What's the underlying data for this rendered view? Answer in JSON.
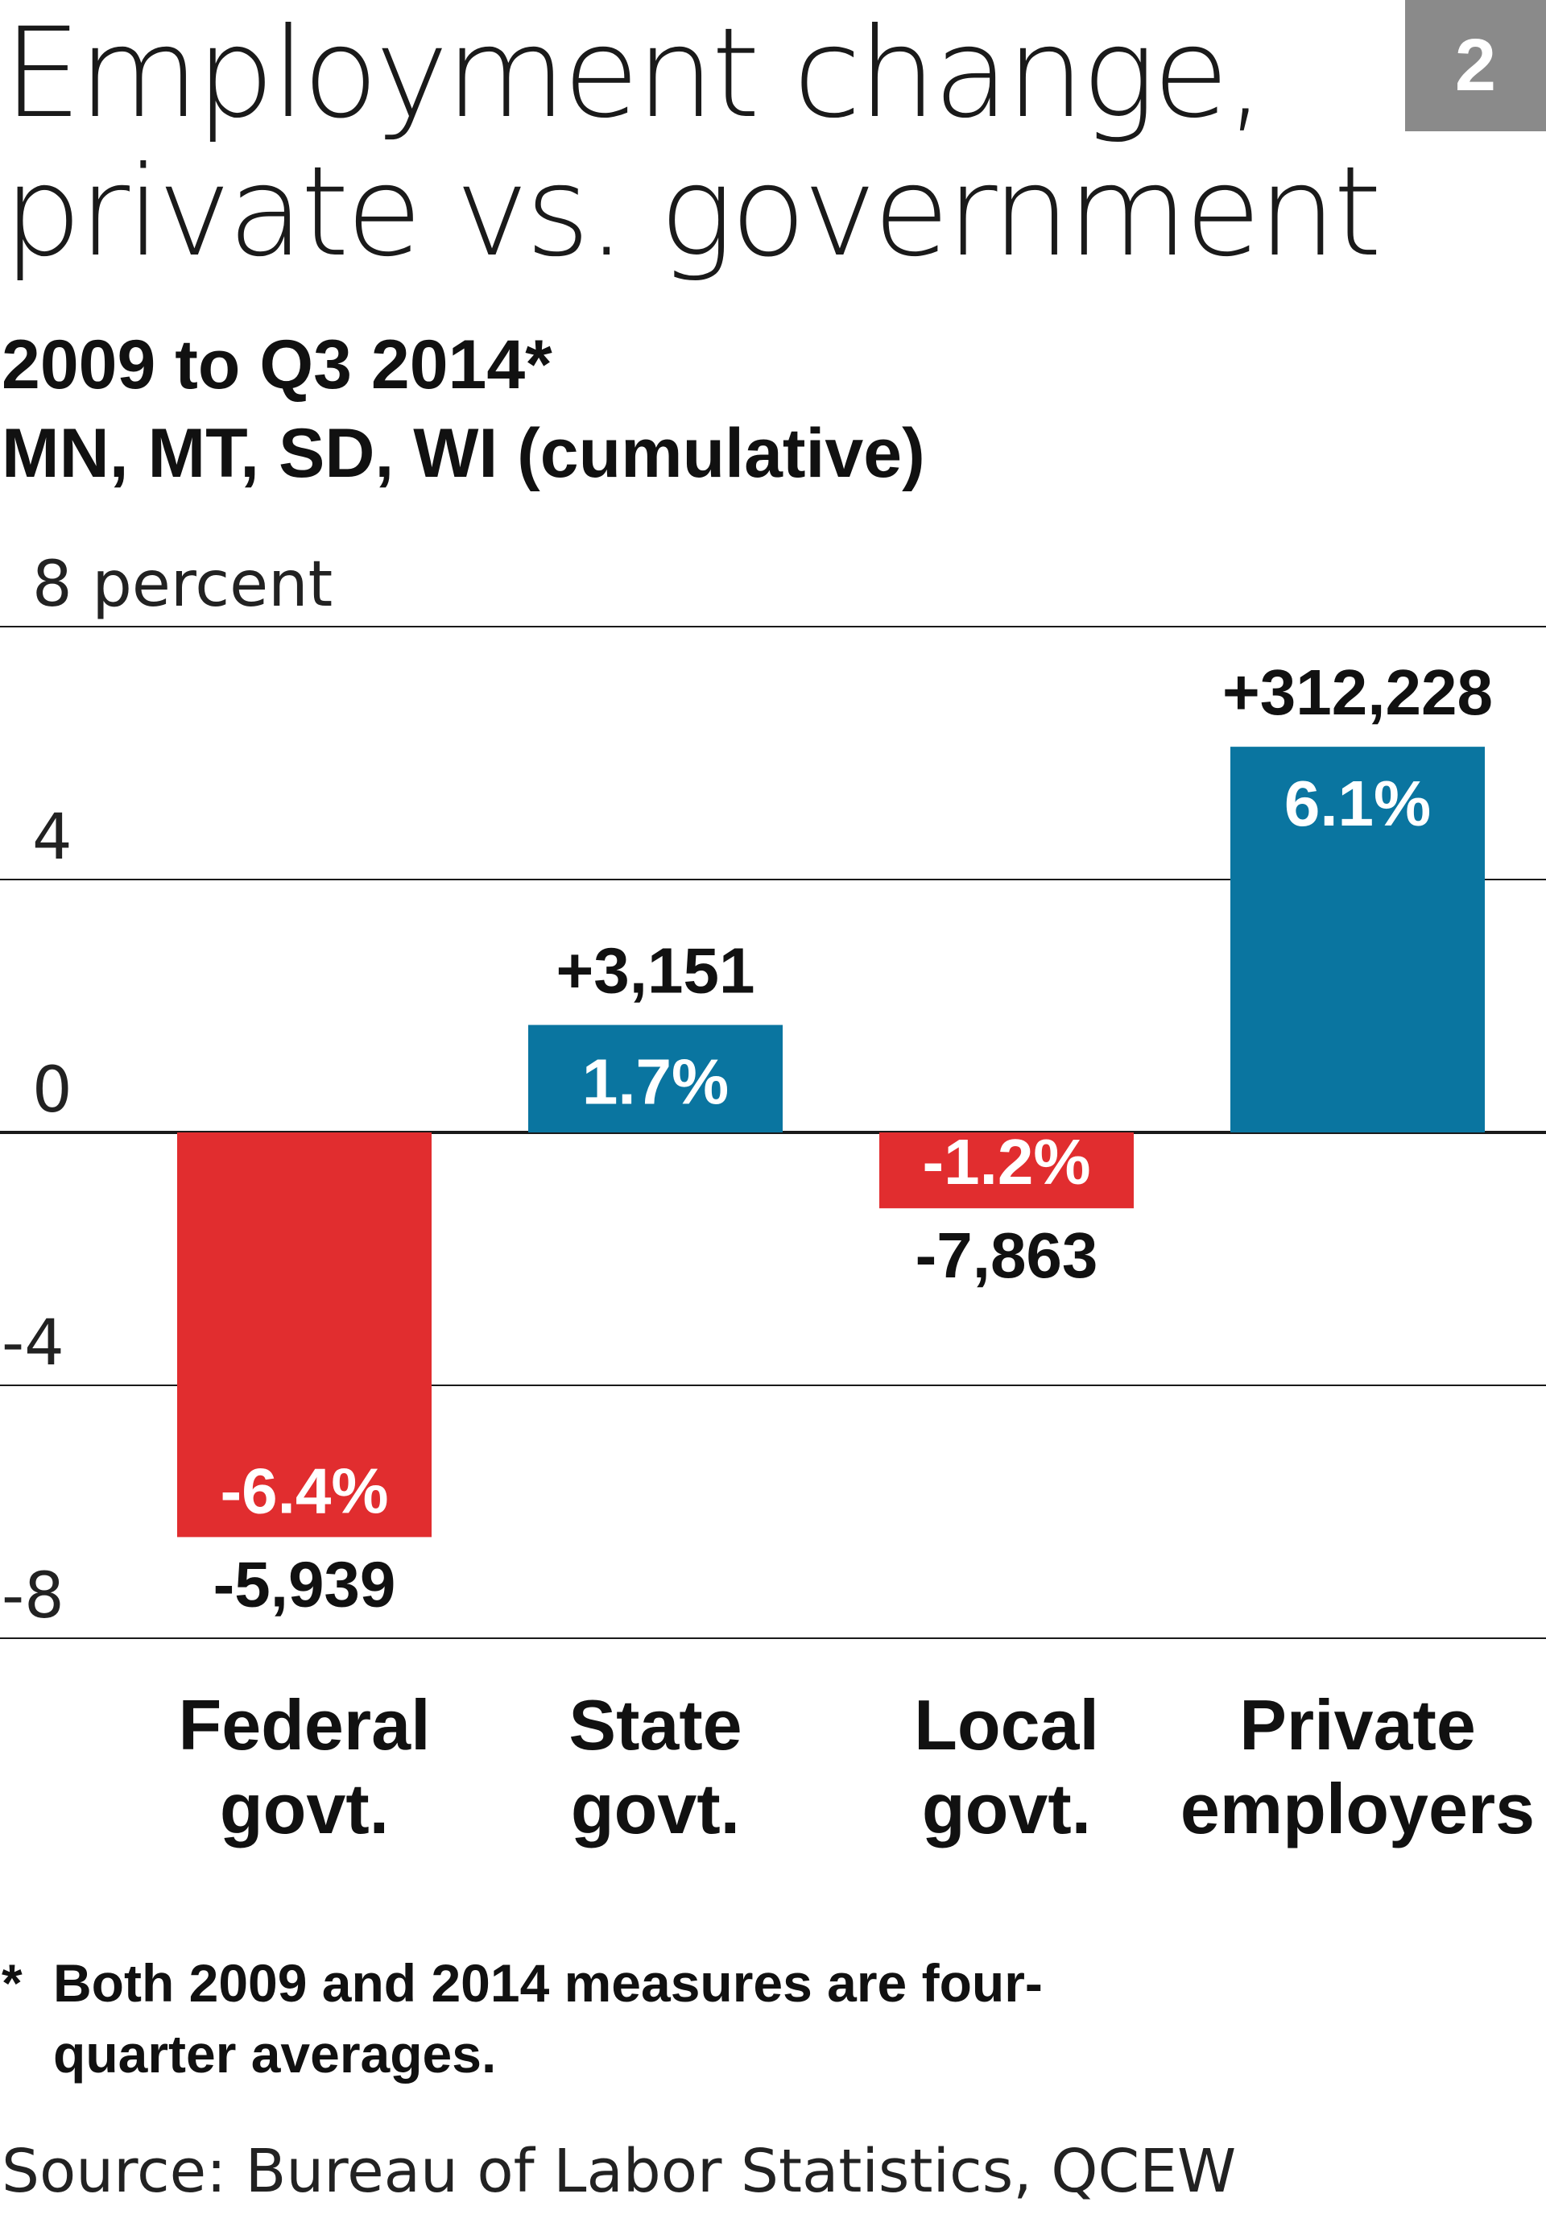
{
  "title_lines": [
    "Employment change,",
    "private vs. government"
  ],
  "badge": "2",
  "subtitle_lines": [
    "2009 to Q3 2014*",
    "MN, MT, SD, WI (cumulative)"
  ],
  "footnote": {
    "marker": "*",
    "text": "Both 2009 and 2014 measures are four-quarter averages."
  },
  "source": "Source: Bureau of Labor Statistics, QCEW",
  "colors": {
    "positive": "#0a75a0",
    "negative": "#e12d2f",
    "gridline": "#1a1a1a"
  },
  "chart_data": {
    "type": "bar",
    "title": "Employment change, private vs. government",
    "subtitle": "2009 to Q3 2014* MN, MT, SD, WI (cumulative)",
    "xlabel": "",
    "ylabel": "",
    "ylim": [
      -8,
      8
    ],
    "yticks": [
      8,
      4,
      0,
      -4,
      -8
    ],
    "ytick_labels": [
      "8 percent",
      "4",
      "0",
      "-4",
      "-8"
    ],
    "grid": true,
    "categories": [
      {
        "line1": "Federal",
        "line2": "govt."
      },
      {
        "line1": "State",
        "line2": "govt."
      },
      {
        "line1": "Local",
        "line2": "govt."
      },
      {
        "line1": "Private",
        "line2": "employers"
      }
    ],
    "values": [
      -6.4,
      1.7,
      -1.2,
      6.1
    ],
    "value_labels": [
      "-6.4%",
      "1.7%",
      "-1.2%",
      "6.1%"
    ],
    "change_labels": [
      "-5,939",
      "+3,151",
      "-7,863",
      "+312,228"
    ]
  }
}
